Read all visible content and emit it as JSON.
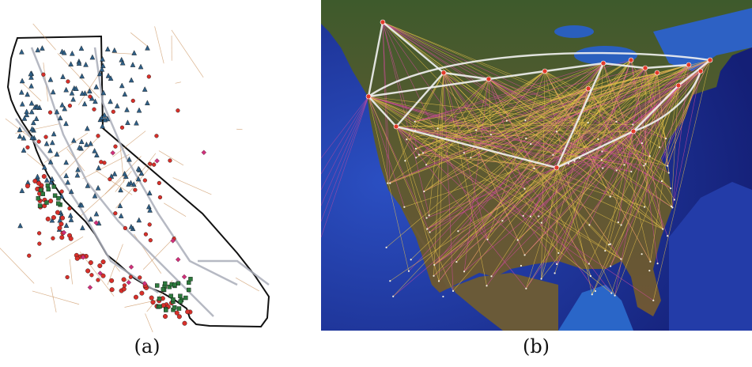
{
  "figure": {
    "panel_a": {
      "caption": "(a)"
    },
    "panel_b": {
      "caption": "(b)"
    }
  },
  "colors": {
    "state_outline": "#111111",
    "roads_major": "#a9adb8",
    "roads_minor": "#c9905a",
    "marker_blue": "#2f5f86",
    "marker_red": "#d8302a",
    "marker_green": "#2d7a3d",
    "marker_magenta": "#d0307a",
    "ocean_deep": "#1c2f9a",
    "ocean_shallow": "#3a78c8",
    "land_green": "#3d5a2a",
    "land_brown": "#6b5536",
    "link_white": "#f2f2f2",
    "link_yellow": "#e8c24a",
    "link_pink": "#d64aa0",
    "node_red": "#e23a2a"
  },
  "icons": {
    "marker_triangle": "triangle-marker-icon",
    "marker_circle": "circle-marker-icon",
    "marker_square": "square-marker-icon",
    "hub_node": "hub-node-icon"
  }
}
